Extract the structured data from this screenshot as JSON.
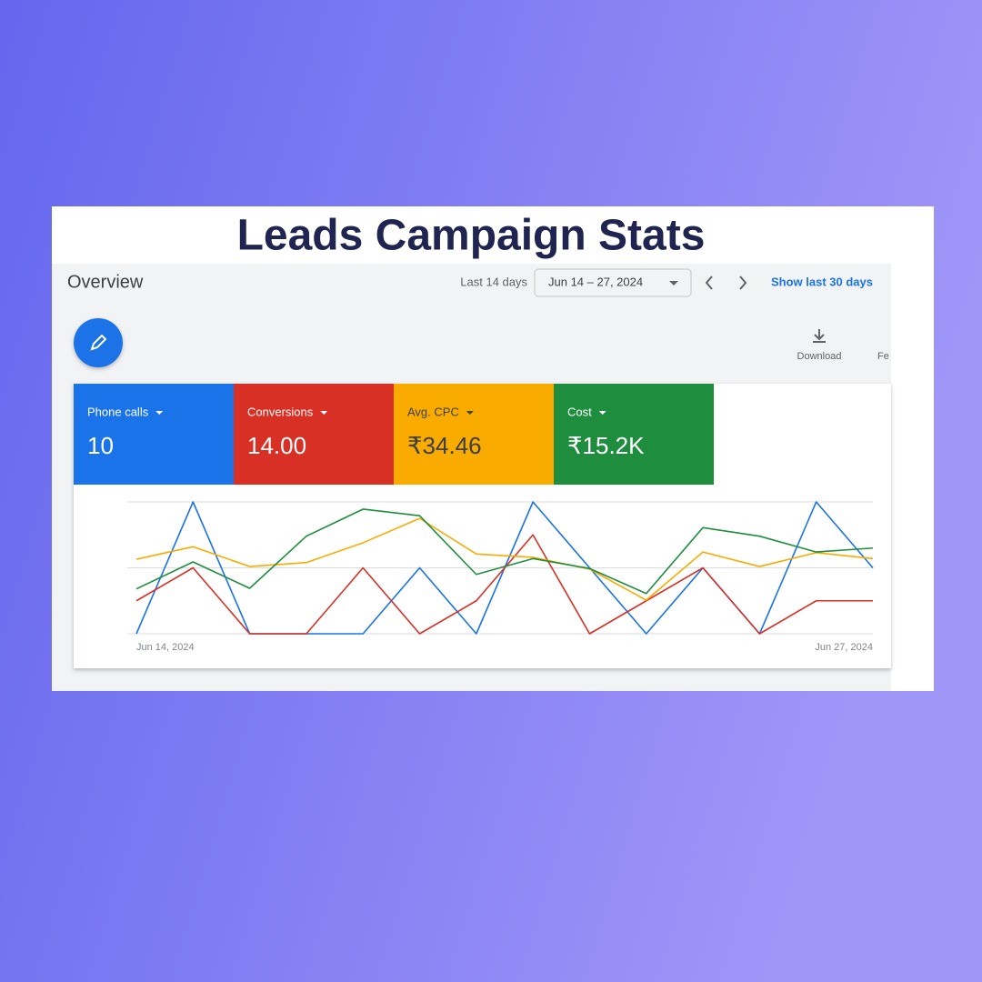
{
  "title": "Leads Campaign Stats",
  "overview": {
    "heading": "Overview",
    "range_label": "Last 14 days",
    "date_range": "Jun 14 – 27, 2024",
    "link": "Show last 30 days",
    "download": "Download",
    "cut_label": "Fe"
  },
  "chart_data": {
    "type": "line",
    "categories": [
      "Jun 14, 2024",
      null,
      null,
      null,
      null,
      null,
      null,
      null,
      null,
      null,
      null,
      null,
      null,
      "Jun 27, 2024"
    ],
    "ylim": [
      0,
      2
    ],
    "gridlines": [
      0,
      1,
      2
    ],
    "series": [
      {
        "name": "Phone calls",
        "total": "10",
        "color": "#1a73e8",
        "values": [
          0,
          2,
          0,
          0,
          0,
          1,
          0,
          2,
          1,
          0,
          1,
          0,
          2,
          1
        ]
      },
      {
        "name": "Conversions",
        "total": "14.00",
        "color": "#d93025",
        "values": [
          0.5,
          1,
          0,
          0,
          1,
          0,
          0.5,
          1.5,
          0,
          0.5,
          1,
          0,
          0.5,
          0.5
        ]
      },
      {
        "name": "Avg. CPC",
        "total": "₹34.46",
        "color": "#f9ab00",
        "values": [
          1.13,
          1.32,
          1.02,
          1.08,
          1.38,
          1.75,
          1.21,
          1.16,
          0.98,
          0.51,
          1.24,
          1.02,
          1.23,
          1.14
        ]
      },
      {
        "name": "Cost",
        "total": "₹15.2K",
        "color": "#1e8e3e",
        "values": [
          0.68,
          1.09,
          0.69,
          1.48,
          1.89,
          1.79,
          0.9,
          1.14,
          0.99,
          0.61,
          1.61,
          1.48,
          1.24,
          1.3
        ]
      }
    ]
  }
}
